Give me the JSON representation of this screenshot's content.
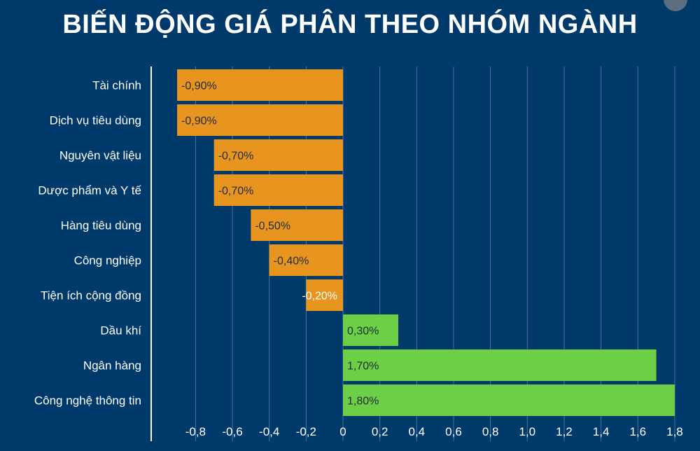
{
  "title": "BIẾN ĐỘNG GIÁ PHÂN THEO NHÓM NGÀNH",
  "colors": {
    "background": "#003a6b",
    "negative": "#e8951f",
    "positive": "#6ccf45",
    "grid": "#4d7398",
    "axis": "#ffffff",
    "text": "#ffffff"
  },
  "chart_data": {
    "type": "bar",
    "orientation": "horizontal",
    "title": "BIẾN ĐỘNG GIÁ PHÂN THEO NHÓM NGÀNH",
    "xlabel": "",
    "ylabel": "",
    "xlim": [
      -1.0,
      1.8
    ],
    "grid": true,
    "categories": [
      "Tài chính",
      "Dịch vụ tiêu dùng",
      "Nguyên vật liệu",
      "Dược phẩm và Y tế",
      "Hàng tiêu dùng",
      "Công nghiệp",
      "Tiện ích cộng đồng",
      "Dầu khí",
      "Ngân hàng",
      "Công nghệ thông tin"
    ],
    "values": [
      -0.9,
      -0.9,
      -0.7,
      -0.7,
      -0.5,
      -0.4,
      -0.2,
      0.3,
      1.7,
      1.8
    ],
    "data_labels": [
      "-0,90%",
      "-0,90%",
      "-0,70%",
      "-0,70%",
      "-0,50%",
      "-0,40%",
      "-0,20%",
      "0,30%",
      "1,70%",
      "1,80%"
    ],
    "tick_values": [
      -0.8,
      -0.6,
      -0.4,
      -0.2,
      0,
      0.2,
      0.4,
      0.6,
      0.8,
      1.0,
      1.2,
      1.4,
      1.6,
      1.8
    ],
    "tick_labels": [
      "-0,8",
      "-0,6",
      "-0,4",
      "-0,2",
      "0",
      "0,2",
      "0,4",
      "0,6",
      "0,8",
      "1,0",
      "1,2",
      "1,4",
      "1,6",
      "1,8"
    ]
  }
}
